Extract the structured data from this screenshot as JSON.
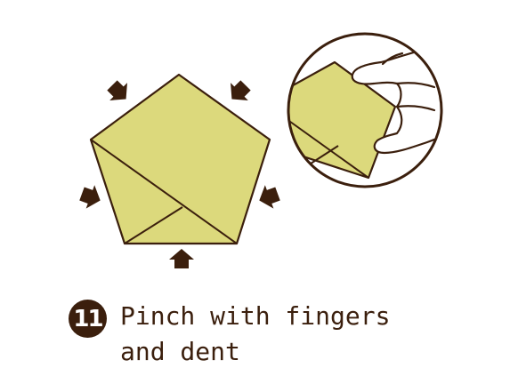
{
  "step": {
    "number": "11",
    "instruction_line1": "Pinch with fingers",
    "instruction_line2": "and dent"
  },
  "colors": {
    "paper": "#dcd97c",
    "outline": "#3b1f0d",
    "arrow": "#3b1f0d",
    "background": "#ffffff"
  },
  "icons": {
    "press_arrows": [
      "arrow-down-right-icon",
      "arrow-down-left-icon",
      "arrow-right-icon",
      "arrow-left-icon",
      "arrow-up-icon"
    ],
    "hand": "hand-icon"
  }
}
